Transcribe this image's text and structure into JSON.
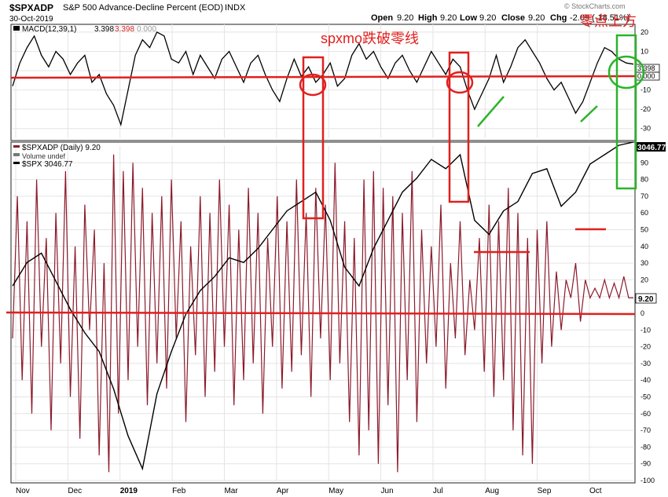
{
  "header": {
    "symbol": "$SPXADP",
    "description": "S&P 500 Advance-Decline Percent (EOD)",
    "exchange": "INDX",
    "date": "30-Oct-2019",
    "open_label": "Open",
    "open": "9.20",
    "high_label": "High",
    "high": "9.20",
    "low_label": "Low",
    "low": "9.20",
    "close_label": "Close",
    "close": "9.20",
    "chg_label": "Chg",
    "chg": "-2.09 (-18.51%)",
    "watermark": "© StockCharts.com"
  },
  "macd_panel": {
    "label_prefix": "MACD(12,39,1)",
    "macd_value": "3.398",
    "signal_value": "3.398",
    "hist_value": "0.000",
    "tag_top": "3.398",
    "tag_bottom": "0.000",
    "y_ticks": [
      "20",
      "10",
      "0",
      "-10",
      "-20",
      "-30"
    ]
  },
  "main_panel": {
    "legend_ad": "$SPXADP (Daily) 9.20",
    "legend_volume": "Volume undef",
    "legend_spx": "$SPX 3046.77",
    "spx_tag": "3046.77",
    "ad_tag": "9.20",
    "y_ticks": [
      "90",
      "80",
      "70",
      "60",
      "50",
      "40",
      "30",
      "20",
      "10",
      "0",
      "-10",
      "-20",
      "-30",
      "-40",
      "-50",
      "-60",
      "-70",
      "-80",
      "-90",
      "-100"
    ]
  },
  "x_axis": {
    "labels": [
      "Nov",
      "Dec",
      "2019",
      "Feb",
      "Mar",
      "Apr",
      "May",
      "Jun",
      "Jul",
      "Aug",
      "Sep",
      "Oct"
    ]
  },
  "annotations": {
    "text_mid": "spxmo跌破零线",
    "text_right": "零点上方"
  },
  "colors": {
    "ad_line": "#8b1a2b",
    "spx_line": "#000000",
    "macd_line": "#000000",
    "annotation_red": "#e0201e",
    "annotation_green": "#2bb32b",
    "grid": "#e4e4e4"
  },
  "chart_data": [
    {
      "type": "line",
      "name": "MACD(12,39,1)",
      "ylim": [
        -35,
        22
      ],
      "x": [
        0,
        3,
        6,
        9,
        12,
        15,
        18,
        21,
        24,
        27,
        30,
        33,
        36,
        39,
        42,
        45,
        48,
        51,
        54,
        57,
        60,
        63,
        66,
        69,
        72,
        75,
        78,
        81,
        84,
        87,
        90,
        93,
        96,
        99,
        102,
        105,
        108,
        111,
        114,
        117,
        120,
        123,
        126,
        129,
        132,
        135,
        138,
        141,
        144,
        147,
        150,
        153,
        156,
        159,
        162,
        165,
        168,
        171,
        174,
        177,
        180,
        183,
        186,
        189,
        192,
        195,
        198,
        201,
        204,
        207,
        210,
        213,
        216,
        219,
        222,
        225,
        228,
        231,
        234,
        237,
        240,
        243,
        246,
        249,
        252,
        255,
        258
      ],
      "y": [
        -8,
        4,
        12,
        18,
        8,
        2,
        10,
        6,
        -2,
        4,
        8,
        -6,
        -2,
        -12,
        -18,
        -28,
        -10,
        8,
        16,
        12,
        20,
        18,
        6,
        4,
        10,
        -2,
        8,
        2,
        -4,
        6,
        10,
        2,
        -6,
        4,
        8,
        -2,
        -10,
        -16,
        -4,
        6,
        -3,
        2,
        -6,
        -2,
        4,
        -8,
        -4,
        8,
        14,
        6,
        10,
        2,
        -4,
        4,
        8,
        0,
        -6,
        2,
        10,
        4,
        -2,
        6,
        2,
        -10,
        -20,
        -12,
        -4,
        8,
        -6,
        2,
        12,
        16,
        10,
        4,
        -4,
        -10,
        -6,
        -14,
        -22,
        -16,
        -6,
        4,
        12,
        10,
        6,
        4,
        3.4
      ],
      "zero_line": 0
    },
    {
      "type": "line",
      "name": "$SPXADP (Daily)",
      "ylim": [
        -100,
        100
      ],
      "x": [
        0,
        2,
        4,
        6,
        8,
        10,
        12,
        14,
        16,
        18,
        20,
        22,
        24,
        26,
        28,
        30,
        32,
        34,
        36,
        38,
        40,
        42,
        44,
        46,
        48,
        50,
        52,
        54,
        56,
        58,
        60,
        62,
        64,
        66,
        68,
        70,
        72,
        74,
        76,
        78,
        80,
        82,
        84,
        86,
        88,
        90,
        92,
        94,
        96,
        98,
        100,
        102,
        104,
        106,
        108,
        110,
        112,
        114,
        116,
        118,
        120,
        122,
        124,
        126,
        128,
        130,
        132,
        134,
        136,
        138,
        140,
        142,
        144,
        146,
        148,
        150,
        152,
        154,
        156,
        158,
        160,
        162,
        164,
        166,
        168,
        170,
        172,
        174,
        176,
        178,
        180,
        182,
        184,
        186,
        188,
        190,
        192,
        194,
        196,
        198,
        200,
        202,
        204,
        206,
        208,
        210,
        212,
        214,
        216,
        218,
        220,
        222,
        224,
        226,
        228,
        230,
        232,
        234,
        236,
        238,
        240,
        242,
        244,
        246,
        248,
        250,
        252,
        254,
        256,
        258
      ],
      "y": [
        -15,
        70,
        -40,
        55,
        -60,
        80,
        -20,
        45,
        -70,
        60,
        -30,
        85,
        -50,
        40,
        -75,
        65,
        -10,
        50,
        -85,
        30,
        -95,
        95,
        -60,
        85,
        -40,
        90,
        -20,
        75,
        -55,
        60,
        -30,
        70,
        -45,
        80,
        -15,
        55,
        -65,
        40,
        -25,
        70,
        -50,
        60,
        -35,
        80,
        -20,
        65,
        -55,
        50,
        -40,
        75,
        -30,
        60,
        -60,
        45,
        -20,
        70,
        -45,
        55,
        -35,
        80,
        -25,
        60,
        -50,
        75,
        -15,
        65,
        -40,
        90,
        -30,
        55,
        -65,
        45,
        -85,
        80,
        -70,
        85,
        -90,
        75,
        -55,
        70,
        -95,
        60,
        -40,
        85,
        -65,
        50,
        -30,
        40,
        -20,
        65,
        -45,
        30,
        -15,
        55,
        -25,
        20,
        -10,
        45,
        -35,
        65,
        -50,
        55,
        -40,
        75,
        -70,
        60,
        -85,
        45,
        -90,
        50,
        -30,
        55,
        -20,
        25,
        -10,
        20,
        9.2,
        30,
        -5,
        20,
        9.2,
        15,
        9.2,
        20,
        9.2,
        18,
        9.2,
        22,
        9.2,
        9.2
      ]
    },
    {
      "type": "line",
      "name": "$SPX",
      "x": [
        0,
        6,
        12,
        18,
        24,
        30,
        36,
        42,
        48,
        54,
        60,
        66,
        72,
        78,
        84,
        90,
        96,
        102,
        108,
        114,
        120,
        126,
        132,
        138,
        144,
        150,
        156,
        162,
        168,
        174,
        180,
        186,
        192,
        198,
        204,
        210,
        216,
        222,
        228,
        234,
        240,
        246,
        252,
        258
      ],
      "y": [
        2740,
        2790,
        2810,
        2750,
        2690,
        2640,
        2600,
        2520,
        2420,
        2350,
        2510,
        2600,
        2680,
        2730,
        2760,
        2800,
        2790,
        2820,
        2860,
        2900,
        2920,
        2940,
        2880,
        2780,
        2740,
        2820,
        2880,
        2940,
        2970,
        3010,
        2990,
        3020,
        2880,
        2850,
        2900,
        2920,
        2980,
        2990,
        2910,
        2940,
        3000,
        3020,
        3040,
        3046.77
      ]
    }
  ]
}
